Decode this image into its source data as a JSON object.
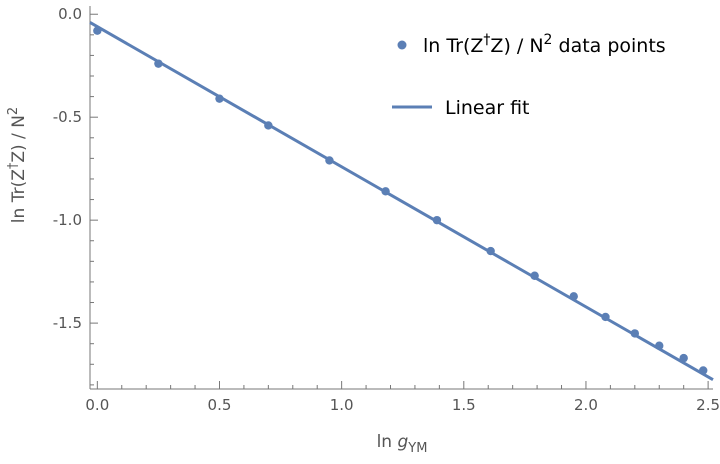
{
  "chart_data": {
    "type": "scatter",
    "xlabel_prefix": "ln ",
    "xlabel_var": "g",
    "xlabel_sub": "YM",
    "ylabel_main": "ln Tr(Z",
    "ylabel_sup": "†",
    "ylabel_rest": "Z) / N",
    "ylabel_pow": "2",
    "xlim": [
      -0.03,
      2.52
    ],
    "ylim": [
      -1.82,
      0.04
    ],
    "xticks": [
      0.0,
      0.5,
      1.0,
      1.5,
      2.0,
      2.5
    ],
    "xtick_labels": [
      "0.0",
      "0.5",
      "1.0",
      "1.5",
      "2.0",
      "2.5"
    ],
    "yticks": [
      0.0,
      -0.5,
      -1.0,
      -1.5
    ],
    "ytick_labels": [
      "0.0",
      "-0.5",
      "-1.0",
      "-1.5"
    ],
    "grid": false,
    "legend_position": "top-right",
    "series": [
      {
        "name": "ln Tr(Z†Z) / N² data points",
        "legend_main": "ln Tr(Z",
        "legend_sup": "†",
        "legend_rest": "Z) / N",
        "legend_pow": "2",
        "legend_tail": " data points",
        "kind": "points",
        "x": [
          0.0,
          0.25,
          0.5,
          0.7,
          0.95,
          1.18,
          1.39,
          1.61,
          1.79,
          1.95,
          2.08,
          2.2,
          2.3,
          2.4,
          2.48
        ],
        "y": [
          -0.08,
          -0.24,
          -0.41,
          -0.54,
          -0.71,
          -0.86,
          -1.0,
          -1.15,
          -1.27,
          -1.37,
          -1.47,
          -1.55,
          -1.61,
          -1.67,
          -1.73
        ]
      },
      {
        "name": "Linear fit",
        "kind": "line",
        "x": [
          -0.03,
          2.52
        ],
        "y": [
          -0.04,
          -1.775
        ]
      }
    ],
    "colors": {
      "series": "#5b7fb5",
      "axis": "#777777",
      "text": "#555555"
    }
  }
}
